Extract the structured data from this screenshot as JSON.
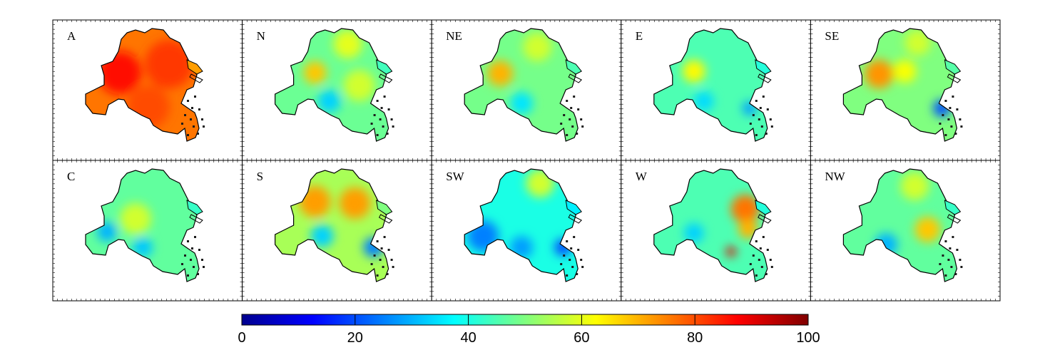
{
  "figure": {
    "panels": [
      {
        "label": "A",
        "mean_value": 76,
        "hotspots": [
          {
            "value": 86
          },
          {
            "value": 82
          },
          {
            "value": 80
          }
        ]
      },
      {
        "label": "N",
        "mean_value": 48,
        "hotspots": [
          {
            "value": 68
          },
          {
            "value": 60
          },
          {
            "value": 58
          },
          {
            "value": 33
          }
        ]
      },
      {
        "label": "NE",
        "mean_value": 49,
        "hotspots": [
          {
            "value": 70
          },
          {
            "value": 58
          },
          {
            "value": 35
          }
        ]
      },
      {
        "label": "E",
        "mean_value": 45,
        "hotspots": [
          {
            "value": 63
          },
          {
            "value": 34
          },
          {
            "value": 28
          }
        ]
      },
      {
        "label": "SE",
        "mean_value": 50,
        "hotspots": [
          {
            "value": 73
          },
          {
            "value": 62
          },
          {
            "value": 58
          },
          {
            "value": 20
          }
        ]
      },
      {
        "label": "C",
        "mean_value": 47,
        "hotspots": [
          {
            "value": 58
          },
          {
            "value": 32
          },
          {
            "value": 30
          }
        ]
      },
      {
        "label": "S",
        "mean_value": 54,
        "hotspots": [
          {
            "value": 72
          },
          {
            "value": 72
          },
          {
            "value": 25
          },
          {
            "value": 33
          }
        ]
      },
      {
        "label": "SW",
        "mean_value": 40,
        "hotspots": [
          {
            "value": 25
          },
          {
            "value": 58
          },
          {
            "value": 28
          },
          {
            "value": 20
          }
        ]
      },
      {
        "label": "W",
        "mean_value": 45,
        "hotspots": [
          {
            "value": 76
          },
          {
            "value": 70
          },
          {
            "value": 90
          },
          {
            "value": 33
          }
        ]
      },
      {
        "label": "NW",
        "mean_value": 47,
        "hotspots": [
          {
            "value": 68
          },
          {
            "value": 58
          },
          {
            "value": 30
          }
        ]
      }
    ]
  },
  "colorbar": {
    "min": 0,
    "max": 100,
    "ticks": [
      "0",
      "20",
      "40",
      "60",
      "80",
      "100"
    ],
    "colormap": [
      "#00008f",
      "#0000ff",
      "#00ffff",
      "#ffff00",
      "#ff0000",
      "#800000"
    ]
  }
}
